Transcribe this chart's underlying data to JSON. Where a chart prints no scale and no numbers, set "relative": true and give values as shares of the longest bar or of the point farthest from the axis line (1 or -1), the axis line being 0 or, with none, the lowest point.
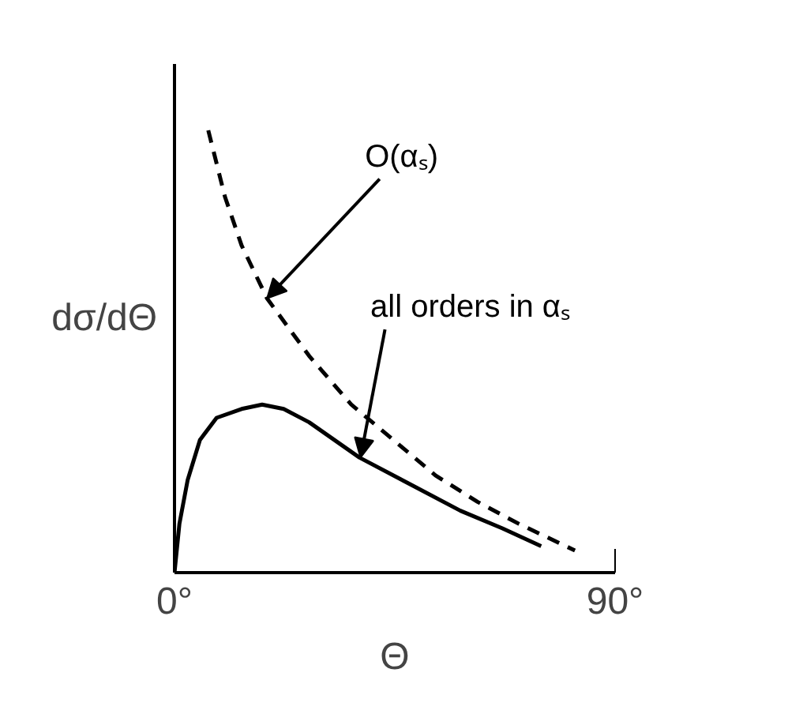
{
  "chart_data": {
    "type": "line",
    "relative": true,
    "xlabel": "Θ",
    "ylabel": "dσ/dΘ",
    "xlim": [
      0,
      90
    ],
    "xticks": [
      {
        "value": 0,
        "label": "0°"
      },
      {
        "value": 90,
        "label": "90°"
      }
    ],
    "series": [
      {
        "color": "#000000",
        "line_style": "dashed",
        "x": [
          6.9,
          10.3,
          13.7,
          18.9,
          27.5,
          36.1,
          44.7,
          53.3,
          61.9,
          70.4,
          81.8
        ],
        "values": [
          1.0,
          0.85,
          0.74,
          0.62,
          0.49,
          0.38,
          0.3,
          0.22,
          0.16,
          0.11,
          0.05
        ]
      },
      {
        "color": "#000000",
        "line_style": "solid",
        "x": [
          0,
          1.0,
          2.7,
          5.2,
          8.6,
          13.7,
          17.9,
          22.3,
          27.5,
          37.8,
          48.1,
          58.4,
          67.0,
          74.9
        ],
        "values": [
          0,
          0.11,
          0.21,
          0.3,
          0.35,
          0.37,
          0.38,
          0.37,
          0.34,
          0.26,
          0.2,
          0.14,
          0.1,
          0.06
        ]
      }
    ],
    "annotations": [
      {
        "text": "O(αₛ)",
        "x": 18.9,
        "y": 0.62
      },
      {
        "text": "all orders in αₛ",
        "x": 38,
        "y": 0.26
      }
    ]
  }
}
